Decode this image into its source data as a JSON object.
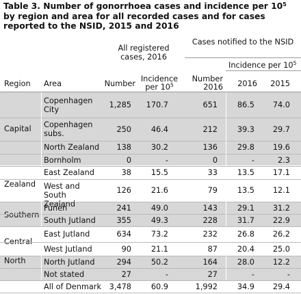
{
  "title": {
    "main": "Table 3. Number of gonorrhoea cases and incidence per 10",
    "sup": "5",
    "rest": " by region and area for all recorded cases and for cases reported to the NSID, 2015 and 2016"
  },
  "header": {
    "all_registered": "All registered cases, 2016",
    "notified": "Cases notified to the NSID",
    "incidence_per": "Incidence per 10",
    "sup": "5",
    "region": "Region",
    "area": "Area",
    "number": "Number",
    "incidence_line1": "Incidence",
    "incidence_line2": "per 10",
    "number_2016_line1": "Number",
    "number_2016_line2": "2016",
    "y2016": "2016",
    "y2015": "2015"
  },
  "regions": [
    "Capital",
    "Zealand",
    "Southern",
    "Central",
    "North"
  ],
  "rows": [
    {
      "area": "Copenhagen City",
      "number": "1,285",
      "incidence": "170.7",
      "number_2016": "651",
      "inc_2016": "86.5",
      "inc_2015": "74.0"
    },
    {
      "area": "Copenhagen subs.",
      "number": "250",
      "incidence": "46.4",
      "number_2016": "212",
      "inc_2016": "39.3",
      "inc_2015": "29.7"
    },
    {
      "area": "North Zealand",
      "number": "138",
      "incidence": "30.2",
      "number_2016": "136",
      "inc_2016": "29.8",
      "inc_2015": "19.6"
    },
    {
      "area": "Bornholm",
      "number": "0",
      "incidence": "-",
      "number_2016": "0",
      "inc_2016": "-",
      "inc_2015": "2.3"
    },
    {
      "area": "East Zealand",
      "number": "38",
      "incidence": "15.5",
      "number_2016": "33",
      "inc_2016": "13.5",
      "inc_2015": "17.1"
    },
    {
      "area": "West and South Zealand",
      "number": "126",
      "incidence": "21.6",
      "number_2016": "79",
      "inc_2016": "13.5",
      "inc_2015": "12.1"
    },
    {
      "area": "Funen",
      "number": "241",
      "incidence": "49.0",
      "number_2016": "143",
      "inc_2016": "29.1",
      "inc_2015": "31.2"
    },
    {
      "area": "South Jutland",
      "number": "355",
      "incidence": "49.3",
      "number_2016": "228",
      "inc_2016": "31.7",
      "inc_2015": "22.9"
    },
    {
      "area": "East Jutland",
      "number": "634",
      "incidence": "73.2",
      "number_2016": "232",
      "inc_2016": "26.8",
      "inc_2015": "26.2"
    },
    {
      "area": "West Jutland",
      "number": "90",
      "incidence": "21.1",
      "number_2016": "87",
      "inc_2016": "20.4",
      "inc_2015": "25.0"
    },
    {
      "area": "North Jutland",
      "number": "294",
      "incidence": "50.2",
      "number_2016": "164",
      "inc_2016": "28.0",
      "inc_2015": "12.2"
    },
    {
      "area": "Not stated",
      "number": "27",
      "incidence": "-",
      "number_2016": "27",
      "inc_2016": "-",
      "inc_2015": "-"
    },
    {
      "area": "All of Denmark",
      "number": "3,478",
      "incidence": "60.9",
      "number_2016": "1,992",
      "inc_2016": "34.9",
      "inc_2015": "29.4"
    }
  ],
  "colors": {
    "band": "#d7d7d7",
    "rule": "#b9b9b9"
  }
}
